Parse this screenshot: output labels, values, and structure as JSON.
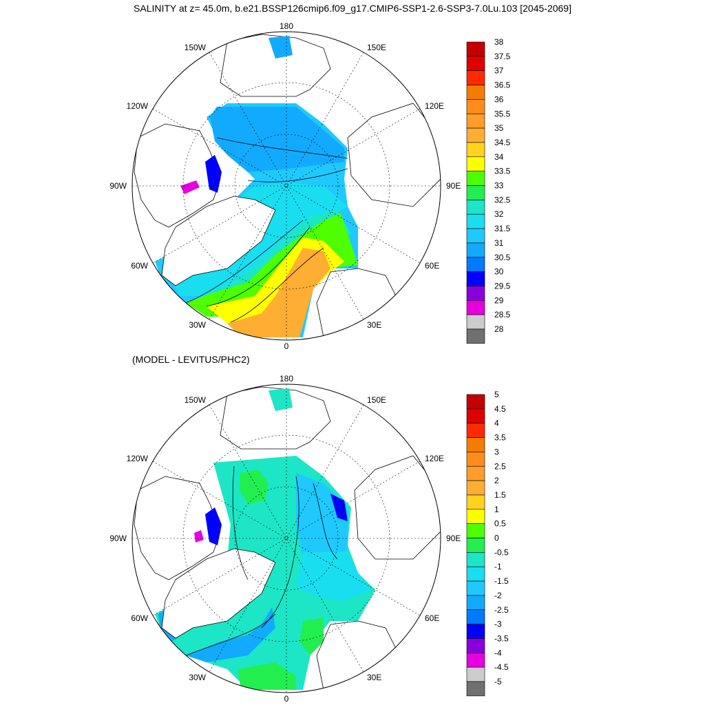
{
  "title": "SALINITY at z=  45.0m, b.e21.BSSP126cmip6.f09_g17.CMIP6-SSP1-2.6-SSP3-7.0Lu.103 [2045-2069]",
  "subtitle": "(MODEL - LEVITUS/PHC2)",
  "longitude_labels": [
    "180",
    "150E",
    "120E",
    "90E",
    "60E",
    "30E",
    "0",
    "30W",
    "60W",
    "90W",
    "120W",
    "150W"
  ],
  "colors": {
    "land": "#ffffff",
    "coast": "#000000",
    "gridline": "#000000"
  },
  "top_colorbar": {
    "labels": [
      "38",
      "37.5",
      "37",
      "36.5",
      "36",
      "35.5",
      "35",
      "34.5",
      "34",
      "33.5",
      "33",
      "32.5",
      "32",
      "31.5",
      "31",
      "30.5",
      "30",
      "29.5",
      "29",
      "28.5",
      "28"
    ],
    "colors": [
      "#c40000",
      "#e00000",
      "#ff2a00",
      "#f47d00",
      "#ff8c1a",
      "#ff9d2a",
      "#ffae34",
      "#ffd31e",
      "#ffff00",
      "#4dff00",
      "#22ef4f",
      "#1ce6c6",
      "#19def0",
      "#1fc9ff",
      "#12aaff",
      "#007aff",
      "#0000ff",
      "#8a00dd",
      "#e600e0",
      "#cccccc",
      "#707070"
    ]
  },
  "bottom_colorbar": {
    "labels": [
      "5",
      "4.5",
      "4",
      "3.5",
      "3",
      "2.5",
      "2",
      "1.5",
      "1",
      "0.5",
      "0",
      "-0.5",
      "-1",
      "-1.5",
      "-2",
      "-2.5",
      "-3",
      "-3.5",
      "-4",
      "-4.5",
      "-5"
    ],
    "colors": [
      "#c40000",
      "#e00000",
      "#ff2a00",
      "#f47d00",
      "#ff8c1a",
      "#ff9d2a",
      "#ffae34",
      "#ffd31e",
      "#ffff00",
      "#4dff00",
      "#22ef4f",
      "#1ce6c6",
      "#19def0",
      "#1fc9ff",
      "#12aaff",
      "#007aff",
      "#0000ff",
      "#8a00dd",
      "#e600e0",
      "#cccccc",
      "#707070"
    ]
  }
}
